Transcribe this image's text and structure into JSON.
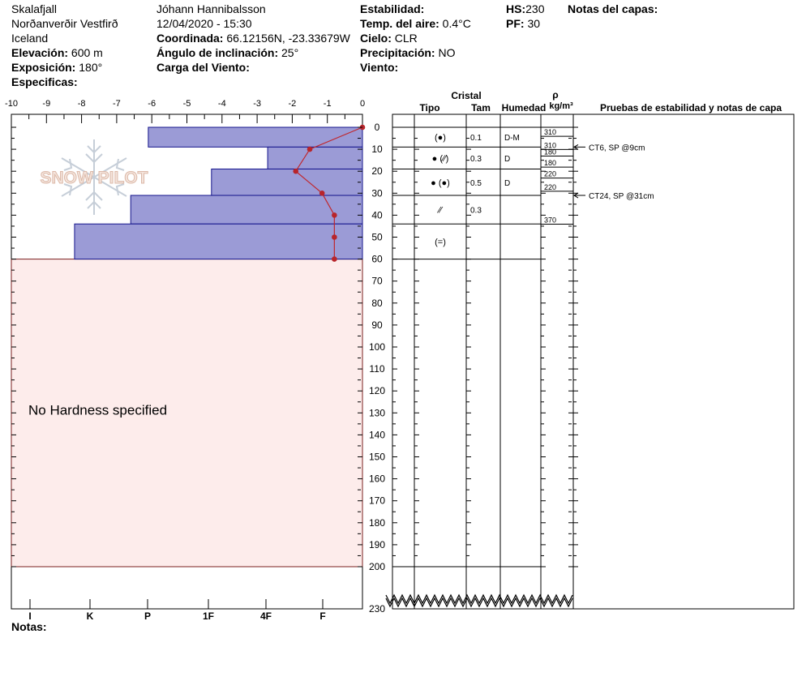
{
  "header": {
    "location": "Skalafjall",
    "region": "Norðanverðir Vestfirð",
    "country": "Iceland",
    "elevation_label": "Elevación:",
    "elevation_value": "600 m",
    "aspect_label": "Exposición:",
    "aspect_value": "180°",
    "specifics_label": "Especificas:",
    "observer": "Jóhann Hannibalsson",
    "datetime": "12/04/2020 - 15:30",
    "coords_label": "Coordinada:",
    "coords_value": "66.12156N, -23.33679W",
    "slope_label": "Ángulo de inclinación:",
    "slope_value": "25°",
    "wind_load_label": "Carga del Viento:",
    "stability_label": "Estabilidad:",
    "air_temp_label": "Temp. del aire:",
    "air_temp_value": "0.4°C",
    "sky_label": "Cielo:",
    "sky_value": "CLR",
    "precip_label": "Precipitación:",
    "precip_value": "NO",
    "wind_label": "Viento:",
    "hs_label": "HS:",
    "hs_value": "230",
    "pf_label": "PF:",
    "pf_value": "30",
    "layer_notes_label": "Notas del capas:"
  },
  "footer": {
    "notes_label": "Notas:"
  },
  "logo": {
    "text": "SNOW PILOT"
  },
  "table_headers": {
    "crystal": "Cristal",
    "type": "Tipo",
    "size": "Tam",
    "moisture": "Humedad",
    "density_symbol": "ρ",
    "density_unit": "kg/m³",
    "tests": "Pruebas de estabilidad y notas de capa"
  },
  "chart_data": {
    "type": "snow_profile",
    "temp_axis": {
      "min": -10,
      "max": 0,
      "ticks": [
        "-10",
        "-9",
        "-8",
        "-7",
        "-6",
        "-5",
        "-4",
        "-3",
        "-2",
        "-1",
        "0"
      ]
    },
    "depth_axis": {
      "min": 0,
      "max": 200,
      "break_value": 230,
      "ticks": [
        "0",
        "10",
        "20",
        "30",
        "40",
        "50",
        "60",
        "70",
        "80",
        "90",
        "100",
        "110",
        "120",
        "130",
        "140",
        "150",
        "160",
        "170",
        "180",
        "190",
        "200"
      ]
    },
    "hardness_labels": [
      "I",
      "K",
      "P",
      "1F",
      "4F",
      "F"
    ],
    "hardness_bars": [
      {
        "top": 0,
        "bottom": 9,
        "temp": -6.1
      },
      {
        "top": 9,
        "bottom": 19,
        "temp": -2.7
      },
      {
        "top": 19,
        "bottom": 31,
        "temp": -4.3
      },
      {
        "top": 31,
        "bottom": 44,
        "temp": -6.6
      },
      {
        "top": 44,
        "bottom": 60,
        "temp": -8.2
      }
    ],
    "temperature_profile": [
      {
        "depth": 0,
        "temp": 0
      },
      {
        "depth": 10,
        "temp": -1.5
      },
      {
        "depth": 20,
        "temp": -1.9
      },
      {
        "depth": 30,
        "temp": -1.15
      },
      {
        "depth": 40,
        "temp": -0.8
      },
      {
        "depth": 50,
        "temp": -0.8
      },
      {
        "depth": 60,
        "temp": -0.8
      }
    ],
    "no_hardness_region": {
      "top": 60,
      "bottom": 200,
      "label": "No Hardness specified"
    },
    "layers": [
      {
        "top": 0,
        "bottom": 9,
        "type": "(●)",
        "size": "0.1",
        "moisture": "D-M"
      },
      {
        "top": 9,
        "bottom": 19,
        "type": "● (⁄⁄)",
        "size": "0.3",
        "moisture": "D"
      },
      {
        "top": 19,
        "bottom": 31,
        "type": "● (●)",
        "size": "0.5",
        "moisture": "D"
      },
      {
        "top": 31,
        "bottom": 44,
        "type": "⁄⁄",
        "size": "0.3",
        "moisture": ""
      },
      {
        "top": 44,
        "bottom": 60,
        "type": "(=)",
        "size": "",
        "moisture": ""
      }
    ],
    "densities": [
      {
        "depth": 3,
        "value": "310"
      },
      {
        "depth": 9,
        "value": "310"
      },
      {
        "depth": 12,
        "value": "180"
      },
      {
        "depth": 17,
        "value": "180"
      },
      {
        "depth": 22,
        "value": "220"
      },
      {
        "depth": 28,
        "value": "220"
      },
      {
        "depth": 43,
        "value": "370"
      }
    ],
    "stability_tests": [
      {
        "depth": 9,
        "label": "CT6, SP @9cm"
      },
      {
        "depth": 31,
        "label": "CT24, SP @31cm"
      }
    ]
  }
}
